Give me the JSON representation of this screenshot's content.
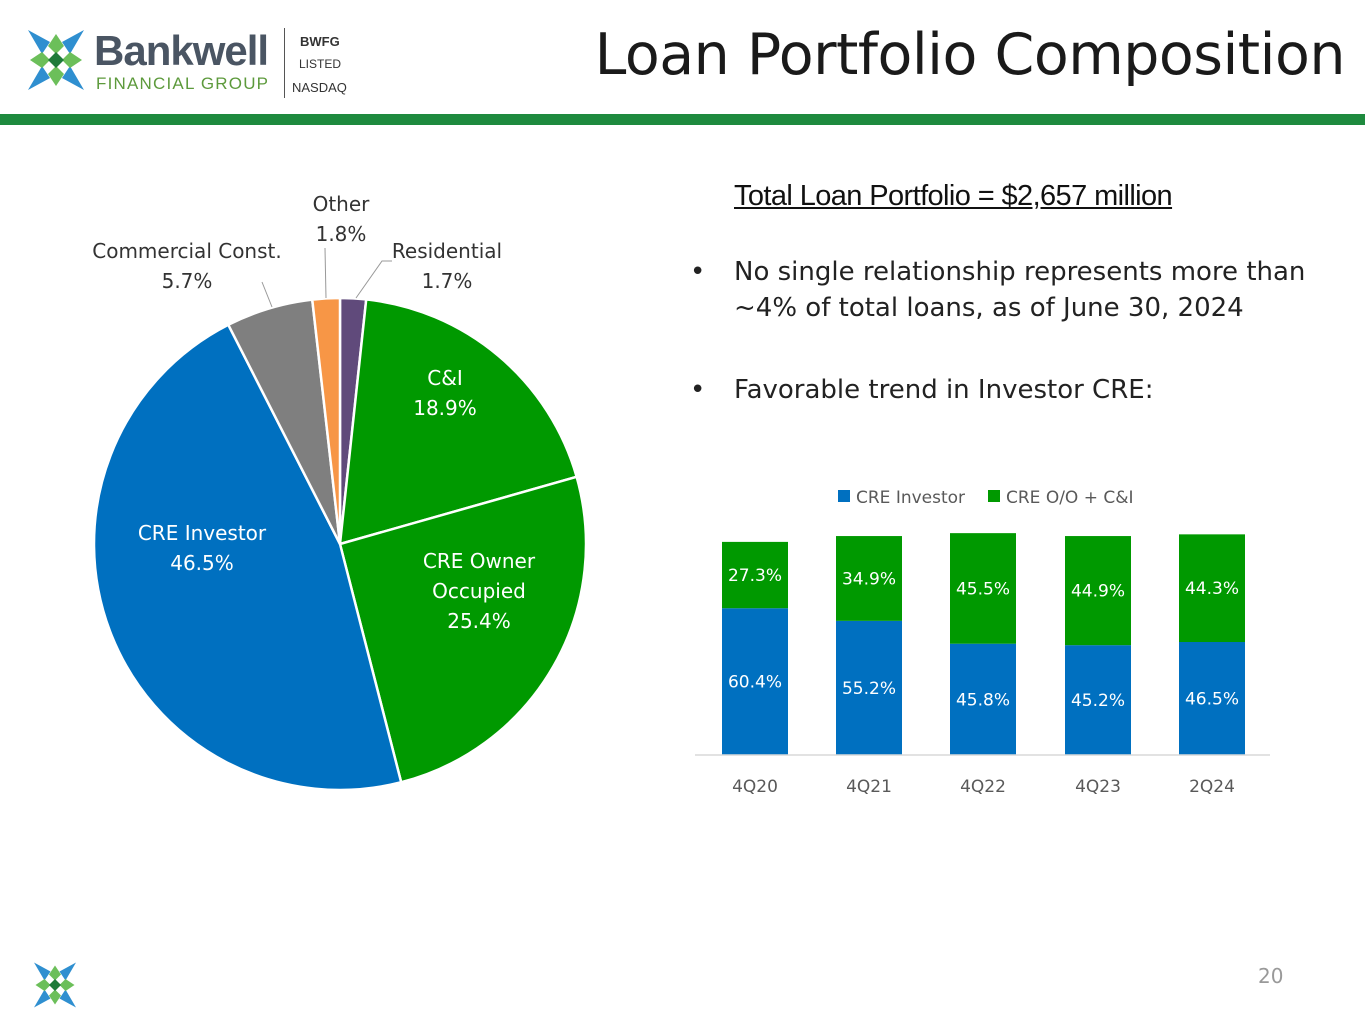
{
  "header": {
    "logo_word": "Bankwell",
    "logo_sub": "FINANCIAL GROUP",
    "ticker": "BWFG",
    "listed": "LISTED",
    "exchange": "NASDAQ",
    "title": "Loan Portfolio Composition"
  },
  "summary": {
    "total": "Total Loan Portfolio = $2,657 million",
    "bullets": [
      "No single relationship represents more than ~4% of total loans, as of June 30, 2024",
      "Favorable trend in Investor CRE:"
    ]
  },
  "footer": {
    "page_number": "20"
  },
  "colors": {
    "brand_green": "#1e8a3e",
    "cre_investor": "#0070c0",
    "green": "#009900",
    "commercial_const": "#7f7f7f",
    "other": "#f79646",
    "residential": "#604a7b"
  },
  "chart_data": [
    {
      "type": "pie",
      "slices": [
        {
          "label": "Residential",
          "value": 1.7,
          "value_label": "1.7%",
          "color": "#604a7b"
        },
        {
          "label": "C&I",
          "value": 18.9,
          "value_label": "18.9%",
          "color": "#009900"
        },
        {
          "label": "CRE Owner Occupied",
          "value": 25.4,
          "value_label": "25.4%",
          "color": "#009900"
        },
        {
          "label": "CRE Investor",
          "value": 46.5,
          "value_label": "46.5%",
          "color": "#0070c0"
        },
        {
          "label": "Commercial Const.",
          "value": 5.7,
          "value_label": "5.7%",
          "color": "#7f7f7f"
        },
        {
          "label": "Other",
          "value": 1.8,
          "value_label": "1.8%",
          "color": "#f79646"
        }
      ]
    },
    {
      "type": "bar",
      "stacked": true,
      "categories": [
        "4Q20",
        "4Q21",
        "4Q22",
        "4Q23",
        "2Q24"
      ],
      "legend_position": "top",
      "series": [
        {
          "name": "CRE Investor",
          "color": "#0070c0",
          "values": [
            60.4,
            55.2,
            45.8,
            45.2,
            46.5
          ],
          "labels": [
            "60.4%",
            "55.2%",
            "45.8%",
            "45.2%",
            "46.5%"
          ]
        },
        {
          "name": "CRE O/O + C&I",
          "color": "#009900",
          "values": [
            27.3,
            34.9,
            45.5,
            44.9,
            44.3
          ],
          "labels": [
            "27.3%",
            "34.9%",
            "45.5%",
            "44.9%",
            "44.3%"
          ]
        }
      ]
    }
  ]
}
